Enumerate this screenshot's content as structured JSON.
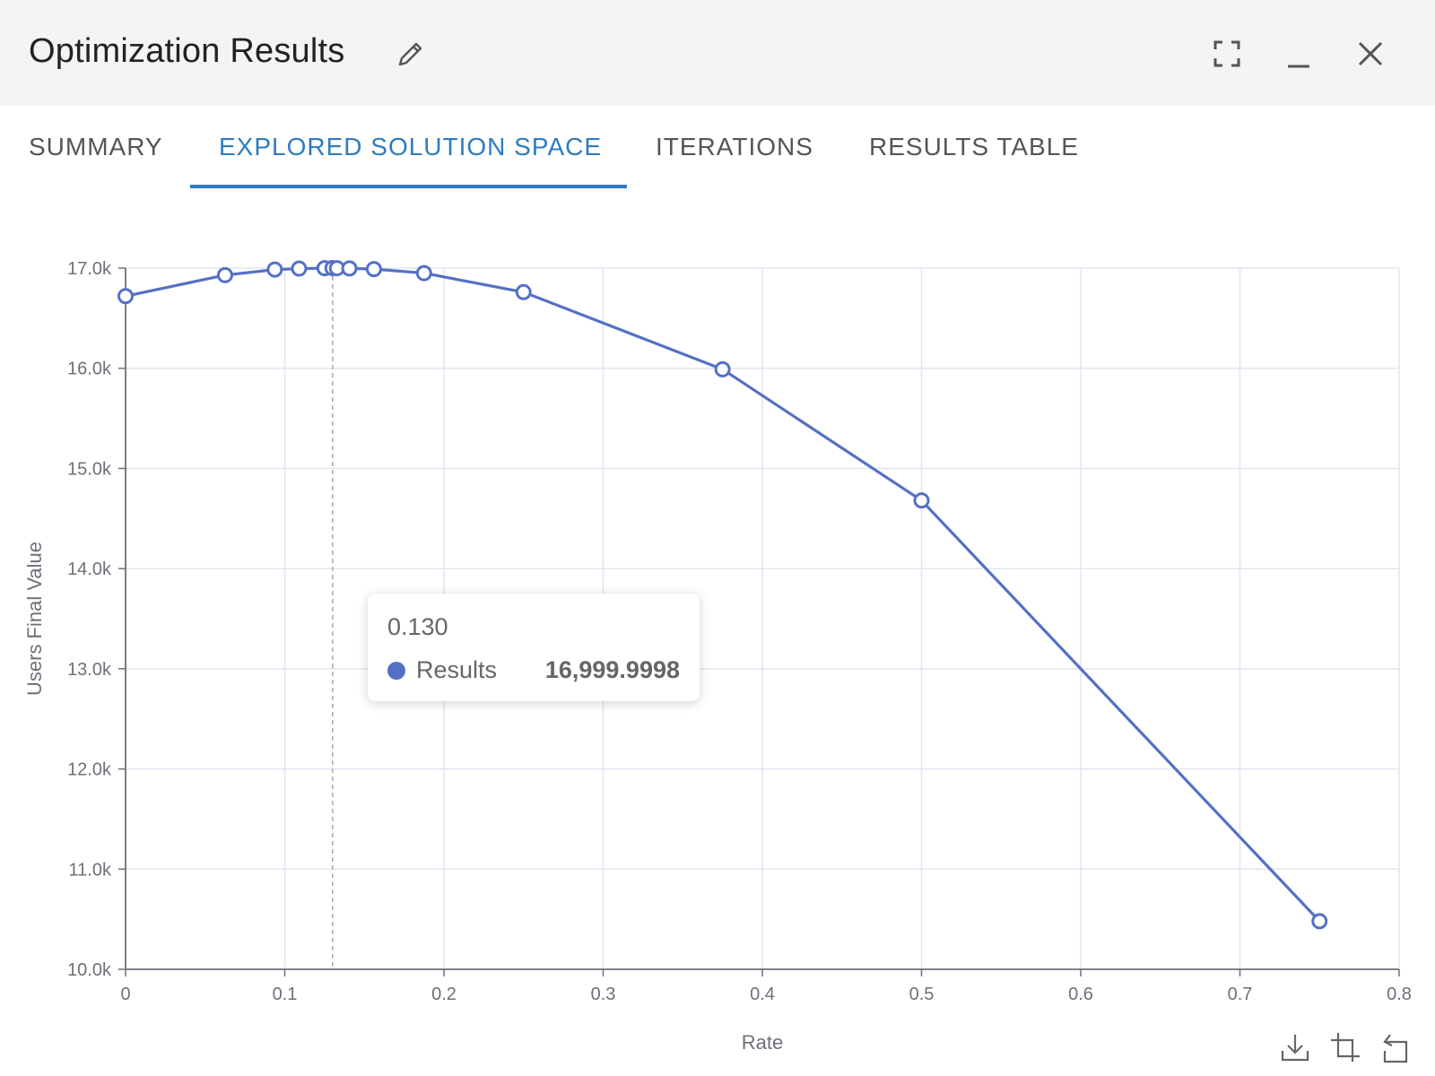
{
  "window": {
    "title": "Optimization Results"
  },
  "tabs": [
    {
      "label": "SUMMARY",
      "active": false
    },
    {
      "label": "EXPLORED SOLUTION SPACE",
      "active": true
    },
    {
      "label": "ITERATIONS",
      "active": false
    },
    {
      "label": "RESULTS TABLE",
      "active": false
    }
  ],
  "icons": {
    "edit": "pencil-icon",
    "expand": "fullscreen-icon",
    "minimize": "minimize-icon",
    "close": "close-icon",
    "download": "download-icon",
    "zoom": "data-zoom-icon",
    "reset": "restore-icon"
  },
  "colors": {
    "accent": "#2f7bbf",
    "series": "#5470c6",
    "grid": "#e0e6f1",
    "axis": "#6e7079"
  },
  "tooltip": {
    "x": "0.130",
    "series": "Results",
    "value": "16,999.9998"
  },
  "chart_data": {
    "type": "line",
    "xlabel": "Rate",
    "ylabel": "Users Final Value",
    "xlim": [
      0,
      0.8
    ],
    "ylim": [
      10000,
      17000
    ],
    "x_ticks": [
      "0",
      "0.1",
      "0.2",
      "0.3",
      "0.4",
      "0.5",
      "0.6",
      "0.7",
      "0.8"
    ],
    "y_ticks": [
      "10.0k",
      "11.0k",
      "12.0k",
      "13.0k",
      "14.0k",
      "15.0k",
      "16.0k",
      "17.0k"
    ],
    "grid": true,
    "hover_x": 0.13,
    "series": [
      {
        "name": "Results",
        "x": [
          0,
          0.0625,
          0.09375,
          0.109,
          0.125,
          0.13,
          0.1328,
          0.1406,
          0.156,
          0.1875,
          0.25,
          0.375,
          0.5,
          0.75
        ],
        "y": [
          16720,
          16930,
          16985,
          16995,
          16999,
          17000,
          16999,
          16997,
          16990,
          16950,
          16760,
          15990,
          14680,
          10480
        ]
      }
    ]
  }
}
